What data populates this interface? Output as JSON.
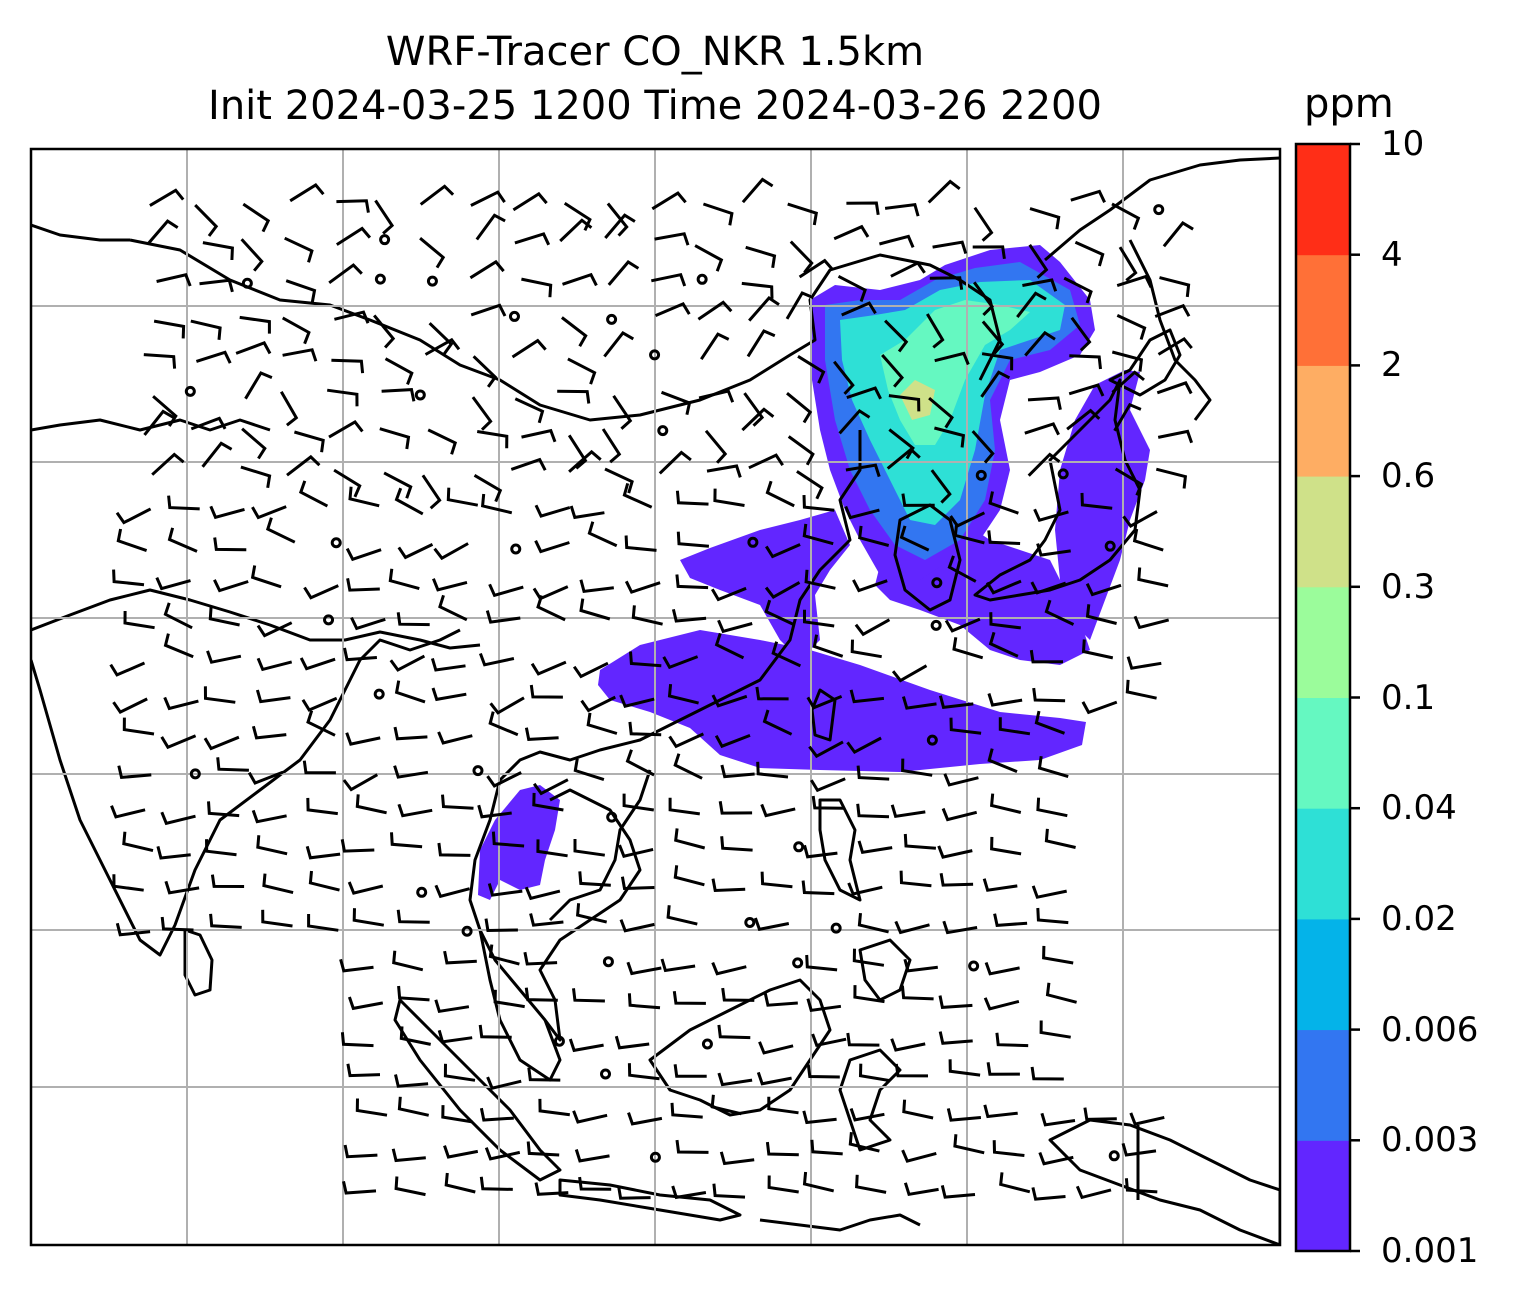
{
  "title_line1": "WRF-Tracer CO_NKR 1.5km",
  "title_line2": "Init 2024-03-25 1200 Time 2024-03-26 2200",
  "colorbar": {
    "unit": "ppm",
    "levels": [
      "0.001",
      "0.003",
      "0.006",
      "0.02",
      "0.04",
      "0.1",
      "0.3",
      "0.6",
      "2",
      "4",
      "10"
    ],
    "colors": [
      "#6226ff",
      "#3276f1",
      "#04b3e9",
      "#2ee0d6",
      "#65f8c1",
      "#9bfc9b",
      "#cfe189",
      "#fead63",
      "#ff7037",
      "#ff2e17"
    ]
  },
  "map": {
    "grid": true,
    "land_color": "#ffffff",
    "coastline_color": "#000000",
    "gridline_color": "#b0b0b0"
  }
}
